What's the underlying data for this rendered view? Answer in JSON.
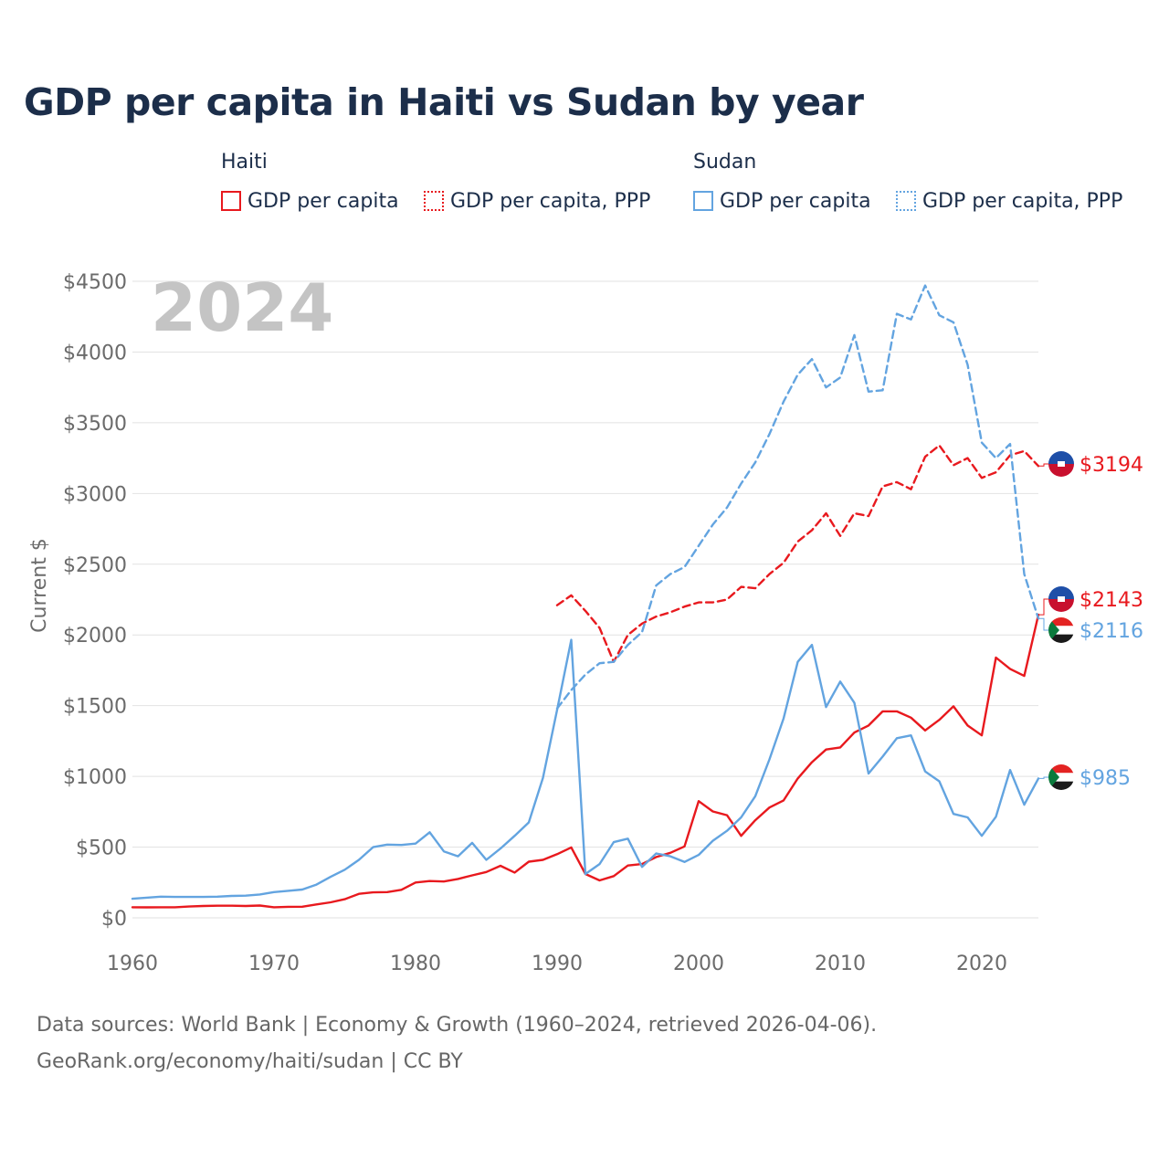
{
  "title": "GDP per capita in Haiti vs Sudan by year",
  "legend": {
    "haiti_group": "Haiti",
    "sudan_group": "Sudan",
    "haiti_gdp": "GDP per capita",
    "haiti_ppp": "GDP per capita, PPP",
    "sudan_gdp": "GDP per capita",
    "sudan_ppp": "GDP per capita, PPP"
  },
  "colors": {
    "haiti": "#e8191e",
    "sudan": "#63a4e0",
    "grid": "#e2e2e2",
    "axis_text": "#6b6b6b",
    "watermark": "#c4c4c4"
  },
  "year_watermark": "2024",
  "end_labels": {
    "haiti_ppp": "$3194",
    "haiti_gdp": "$2143",
    "sudan_ppp": "$2116",
    "sudan_gdp": "$985"
  },
  "footer": {
    "line1": "Data sources: World Bank | Economy & Growth (1960–2024, retrieved 2026-04-06).",
    "line2": "GeoRank.org/economy/haiti/sudan | CC BY"
  },
  "chart_data": {
    "type": "line",
    "title": "GDP per capita in Haiti vs Sudan by year",
    "xlabel": "",
    "ylabel": "Current $",
    "xlim": [
      1960,
      2024
    ],
    "ylim": [
      0,
      4500
    ],
    "x_ticks": [
      1960,
      1970,
      1980,
      1990,
      2000,
      2010,
      2020
    ],
    "y_ticks": [
      0,
      500,
      1000,
      1500,
      2000,
      2500,
      3000,
      3500,
      4000,
      4500
    ],
    "y_tick_labels": [
      "$0",
      "$500",
      "$1000",
      "$1500",
      "$2000",
      "$2500",
      "$3000",
      "$3500",
      "$4000",
      "$4500"
    ],
    "series": [
      {
        "name": "Haiti GDP per capita",
        "country": "Haiti",
        "style": "solid",
        "start_year": 1960,
        "values": [
          75,
          74,
          75,
          75,
          80,
          84,
          86,
          86,
          84,
          87,
          75,
          78,
          79,
          95,
          110,
          132,
          170,
          180,
          182,
          198,
          250,
          260,
          257,
          275,
          300,
          324,
          368,
          320,
          397,
          410,
          450,
          498,
          310,
          265,
          295,
          370,
          380,
          430,
          460,
          505,
          825,
          752,
          726,
          580,
          690,
          780,
          830,
          985,
          1100,
          1190,
          1205,
          1310,
          1360,
          1460,
          1460,
          1415,
          1325,
          1400,
          1495,
          1360,
          1290,
          1840,
          1760,
          1710,
          2143
        ]
      },
      {
        "name": "Haiti GDP per capita, PPP",
        "country": "Haiti",
        "style": "dashed",
        "start_year": 1990,
        "values": [
          2210,
          2280,
          2170,
          2050,
          1810,
          2000,
          2080,
          2130,
          2160,
          2200,
          2230,
          2230,
          2250,
          2340,
          2330,
          2430,
          2510,
          2660,
          2740,
          2860,
          2700,
          2860,
          2840,
          3050,
          3080,
          3030,
          3260,
          3340,
          3200,
          3250,
          3110,
          3150,
          3270,
          3300,
          3194
        ]
      },
      {
        "name": "Sudan GDP per capita",
        "country": "Sudan",
        "style": "solid",
        "start_year": 1960,
        "values": [
          135,
          143,
          150,
          148,
          148,
          148,
          150,
          155,
          157,
          165,
          182,
          191,
          200,
          235,
          290,
          340,
          410,
          500,
          518,
          515,
          525,
          605,
          470,
          435,
          530,
          410,
          490,
          580,
          675,
          990,
          1470,
          1965,
          310,
          380,
          535,
          560,
          360,
          455,
          435,
          395,
          445,
          545,
          615,
          710,
          860,
          1120,
          1410,
          1810,
          1930,
          1490,
          1670,
          1520,
          1020,
          1140,
          1270,
          1290,
          1035,
          965,
          735,
          710,
          580,
          715,
          1045,
          800,
          985
        ]
      },
      {
        "name": "Sudan GDP per capita, PPP",
        "country": "Sudan",
        "style": "dashed",
        "start_year": 1990,
        "values": [
          1480,
          1610,
          1720,
          1800,
          1810,
          1930,
          2020,
          2350,
          2430,
          2480,
          2630,
          2780,
          2900,
          3070,
          3220,
          3420,
          3650,
          3840,
          3950,
          3750,
          3820,
          4120,
          3720,
          3730,
          4270,
          4230,
          4470,
          4260,
          4210,
          3910,
          3360,
          3250,
          3350,
          2430,
          2116
        ]
      }
    ]
  }
}
